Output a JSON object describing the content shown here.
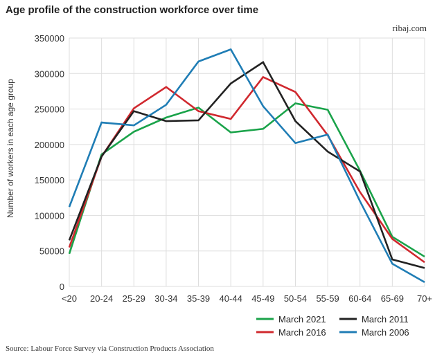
{
  "header": {
    "title": "Age profile of the construction workforce over time",
    "site": "ribaj.com"
  },
  "footer": {
    "source": "Source: Labour Force Survey via Construction Products Association"
  },
  "chart_data": {
    "type": "line",
    "title": "Age profile of the construction workforce over time",
    "xlabel": "",
    "ylabel": "Number of workers in each age group",
    "ylim": [
      0,
      350000
    ],
    "yticks": [
      "0",
      "50000",
      "100000",
      "150000",
      "200000",
      "250000",
      "300000",
      "350000"
    ],
    "grid": true,
    "legend_placement": "bottom-right",
    "categories": [
      "<20",
      "20-24",
      "25-29",
      "30-34",
      "35-39",
      "40-44",
      "45-49",
      "50-54",
      "55-59",
      "60-64",
      "65-69",
      "70+"
    ],
    "series": [
      {
        "name": "March 2021",
        "color": "#1aa34a",
        "values": [
          46000,
          186000,
          218000,
          238000,
          252000,
          217000,
          222000,
          258000,
          249000,
          163000,
          70000,
          42000
        ]
      },
      {
        "name": "March 2016",
        "color": "#d0282e",
        "values": [
          55000,
          183000,
          251000,
          281000,
          247000,
          236000,
          295000,
          274000,
          213000,
          133000,
          67000,
          34000
        ]
      },
      {
        "name": "March 2011",
        "color": "#222222",
        "values": [
          65000,
          183000,
          247000,
          233000,
          234000,
          286000,
          316000,
          233000,
          190000,
          162000,
          38000,
          26000
        ]
      },
      {
        "name": "March 2006",
        "color": "#1f7db5",
        "values": [
          112000,
          231000,
          227000,
          256000,
          317000,
          334000,
          254000,
          202000,
          214000,
          120000,
          32000,
          6000
        ]
      }
    ],
    "legend_order": [
      0,
      2,
      1,
      3
    ]
  }
}
